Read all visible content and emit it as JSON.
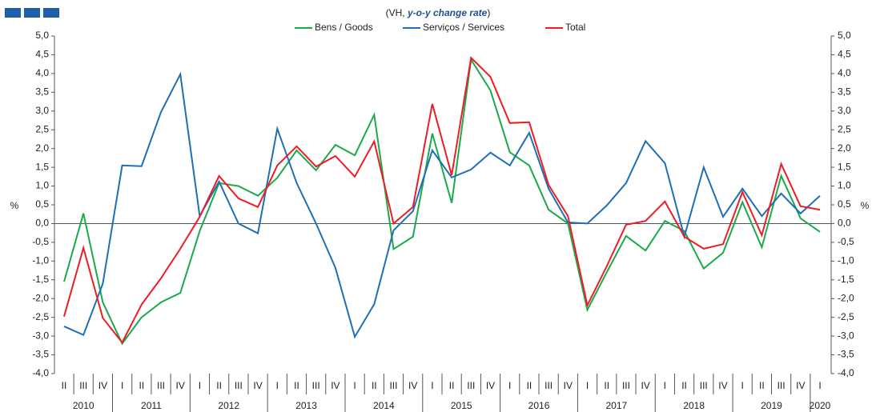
{
  "chart_data": {
    "type": "line",
    "subtitle": {
      "prefix": "(VH,",
      "emphasis": "y-o-y change rate",
      "suffix": ")"
    },
    "ylabel": "%",
    "y2label": "%",
    "categories": [
      "II",
      "III",
      "IV",
      "I",
      "II",
      "III",
      "IV",
      "I",
      "II",
      "III",
      "IV",
      "I",
      "II",
      "III",
      "IV",
      "I",
      "II",
      "III",
      "IV",
      "I",
      "II",
      "III",
      "IV",
      "I",
      "II",
      "III",
      "IV",
      "I",
      "II",
      "III",
      "IV",
      "I",
      "II",
      "III",
      "IV",
      "I",
      "II",
      "III",
      "IV",
      "I"
    ],
    "years": [
      "2010",
      "2011",
      "2012",
      "2013",
      "2014",
      "2015",
      "2016",
      "2017",
      "2018",
      "2019",
      "2020"
    ],
    "series": [
      {
        "name": "Bens / Goods",
        "color": "#1aaa4a",
        "values": [
          -1.55,
          0.27,
          -2.1,
          -3.2,
          -2.5,
          -2.1,
          -1.85,
          -0.2,
          1.08,
          1.0,
          0.74,
          1.22,
          1.95,
          1.42,
          2.1,
          1.82,
          2.9,
          -0.68,
          -0.35,
          2.4,
          0.55,
          4.37,
          3.55,
          1.9,
          1.55,
          0.37,
          0.0,
          -2.3,
          -1.3,
          -0.33,
          -0.72,
          0.07,
          -0.2,
          -1.2,
          -0.78,
          0.57,
          -0.63,
          1.27,
          0.14,
          -0.22
        ]
      },
      {
        "name": "Serviços / Services",
        "color": "#1f6fb5",
        "values": [
          -2.74,
          -2.97,
          -1.6,
          1.55,
          1.53,
          2.97,
          3.98,
          0.2,
          1.12,
          0.0,
          -0.26,
          2.53,
          1.08,
          0.0,
          -1.18,
          -3.02,
          -2.15,
          -0.18,
          0.33,
          1.95,
          1.23,
          1.44,
          1.89,
          1.55,
          2.42,
          0.93,
          0.03,
          0.0,
          0.48,
          1.08,
          2.2,
          1.61,
          -0.35,
          1.5,
          0.18,
          0.93,
          0.2,
          0.8,
          0.27,
          0.74
        ]
      },
      {
        "name": "Total",
        "color": "#ee1c25",
        "values": [
          -2.48,
          -0.65,
          -2.52,
          -3.17,
          -2.16,
          -1.46,
          -0.67,
          0.18,
          1.27,
          0.67,
          0.44,
          1.55,
          2.06,
          1.52,
          1.8,
          1.25,
          2.19,
          0.0,
          0.44,
          3.19,
          1.29,
          4.42,
          3.91,
          2.68,
          2.7,
          1.03,
          0.2,
          -2.18,
          -1.14,
          -0.03,
          0.07,
          0.59,
          -0.35,
          -0.67,
          -0.55,
          0.84,
          -0.31,
          1.59,
          0.46,
          0.37
        ]
      }
    ],
    "ylim": [
      -4.0,
      5.0
    ],
    "yticks": [
      {
        "value": -4.0,
        "label": "-4,0"
      },
      {
        "value": -3.5,
        "label": "-3,5"
      },
      {
        "value": -3.0,
        "label": "-3,0"
      },
      {
        "value": -2.5,
        "label": "-2,5"
      },
      {
        "value": -2.0,
        "label": "-2,0"
      },
      {
        "value": -1.5,
        "label": "-1,5"
      },
      {
        "value": -1.0,
        "label": "-1,0"
      },
      {
        "value": -0.5,
        "label": "-0,5"
      },
      {
        "value": 0.0,
        "label": "0,0"
      },
      {
        "value": 0.5,
        "label": "0,5"
      },
      {
        "value": 1.0,
        "label": "1,0"
      },
      {
        "value": 1.5,
        "label": "1,5"
      },
      {
        "value": 2.0,
        "label": "2,0"
      },
      {
        "value": 2.5,
        "label": "2,5"
      },
      {
        "value": 3.0,
        "label": "3,0"
      },
      {
        "value": 3.5,
        "label": "3,5"
      },
      {
        "value": 4.0,
        "label": "4,0"
      },
      {
        "value": 4.5,
        "label": "4,5"
      },
      {
        "value": 5.0,
        "label": "5,0"
      }
    ],
    "grid": false,
    "legend": "top"
  }
}
